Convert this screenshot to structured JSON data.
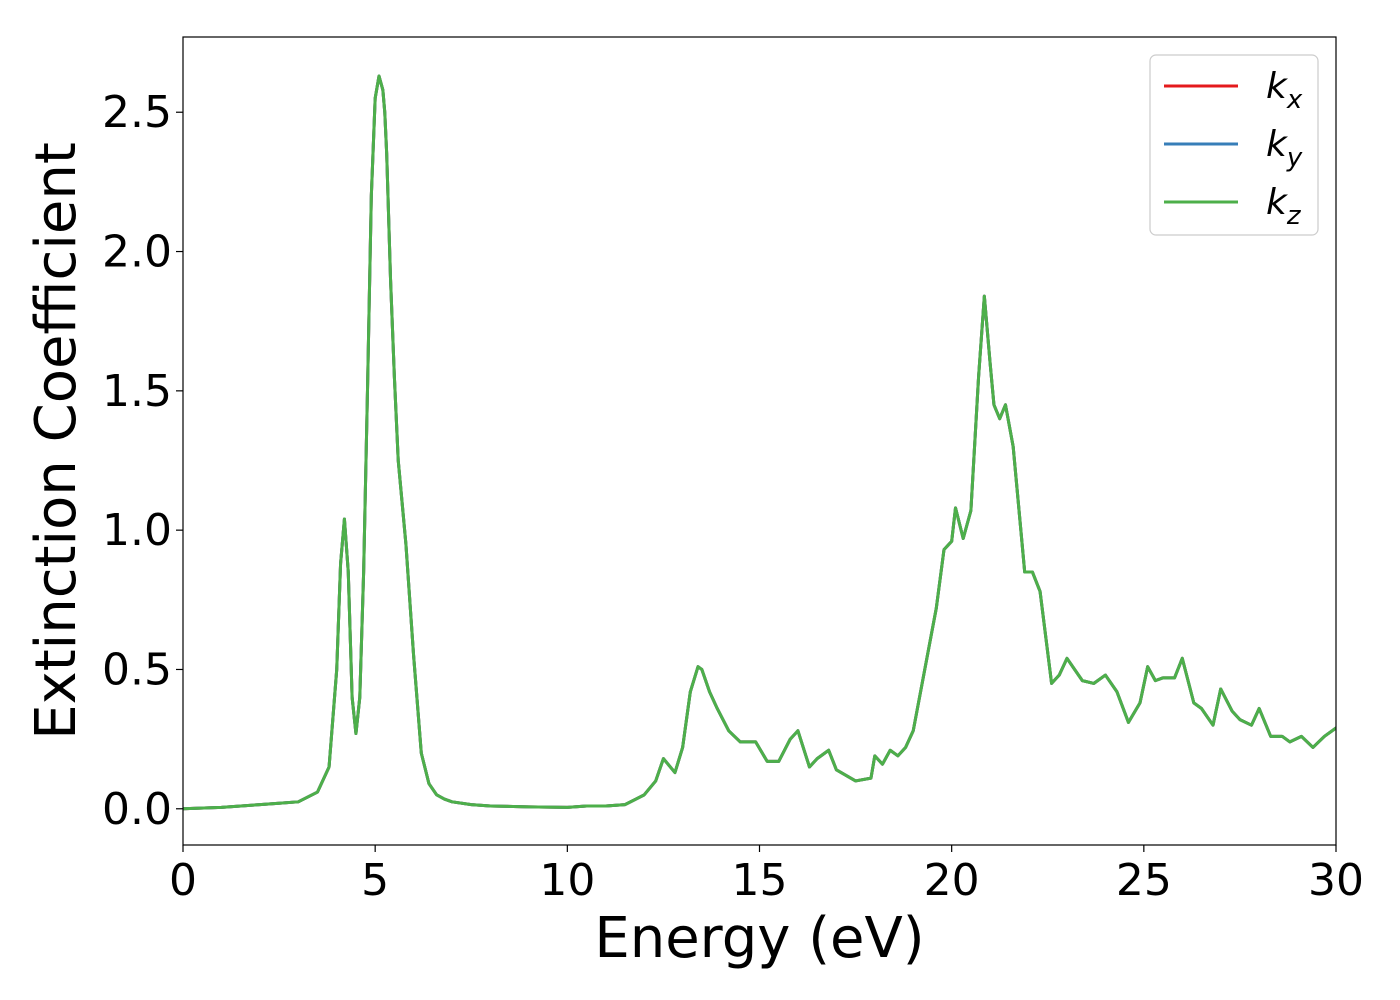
{
  "chart_data": {
    "type": "line",
    "title": "",
    "xlabel": "Energy (eV)",
    "ylabel": "Extinction Coefficient",
    "xlim": [
      0,
      30
    ],
    "ylim": [
      -0.13,
      2.77
    ],
    "xticks": [
      0,
      5,
      10,
      15,
      20,
      25,
      30
    ],
    "xtick_labels": [
      "0",
      "5",
      "10",
      "15",
      "20",
      "25",
      "30"
    ],
    "yticks": [
      0.0,
      0.5,
      1.0,
      1.5,
      2.0,
      2.5
    ],
    "ytick_labels": [
      "0.0",
      "0.5",
      "1.0",
      "1.5",
      "2.0",
      "2.5"
    ],
    "grid": false,
    "legend_position": "top-right",
    "series": [
      {
        "name": "k_x",
        "label_base": "k",
        "label_sub": "x",
        "color": "#e41a1c",
        "x": [
          0,
          1,
          2,
          2.5,
          3,
          3.5,
          3.8,
          4.0,
          4.1,
          4.2,
          4.3,
          4.4,
          4.5,
          4.6,
          4.7,
          4.8,
          4.9,
          5.0,
          5.1,
          5.2,
          5.25,
          5.3,
          5.4,
          5.5,
          5.6,
          5.8,
          6.0,
          6.2,
          6.4,
          6.6,
          6.8,
          7.0,
          7.5,
          8,
          9,
          10,
          10.5,
          11,
          11.5,
          12,
          12.3,
          12.5,
          12.8,
          13.0,
          13.2,
          13.4,
          13.5,
          13.7,
          13.9,
          14.2,
          14.5,
          14.9,
          15.2,
          15.5,
          15.8,
          16.0,
          16.3,
          16.5,
          16.8,
          17.0,
          17.5,
          17.9,
          18.0,
          18.2,
          18.4,
          18.6,
          18.8,
          19.0,
          19.3,
          19.6,
          19.8,
          20.0,
          20.1,
          20.3,
          20.5,
          20.7,
          20.85,
          21.0,
          21.1,
          21.25,
          21.4,
          21.6,
          21.9,
          22.1,
          22.3,
          22.6,
          22.8,
          23.0,
          23.2,
          23.4,
          23.7,
          24.0,
          24.3,
          24.6,
          24.9,
          25.1,
          25.3,
          25.5,
          25.8,
          26.0,
          26.3,
          26.5,
          26.8,
          27.0,
          27.3,
          27.5,
          27.8,
          28.0,
          28.3,
          28.6,
          28.8,
          29.1,
          29.4,
          29.7,
          30.0
        ],
        "y": [
          0.0,
          0.005,
          0.015,
          0.02,
          0.025,
          0.06,
          0.15,
          0.5,
          0.88,
          1.04,
          0.85,
          0.4,
          0.27,
          0.4,
          0.85,
          1.5,
          2.2,
          2.55,
          2.63,
          2.58,
          2.5,
          2.35,
          1.9,
          1.55,
          1.25,
          0.95,
          0.55,
          0.2,
          0.09,
          0.05,
          0.035,
          0.025,
          0.015,
          0.01,
          0.007,
          0.005,
          0.01,
          0.01,
          0.015,
          0.05,
          0.1,
          0.18,
          0.13,
          0.22,
          0.42,
          0.51,
          0.5,
          0.42,
          0.36,
          0.28,
          0.24,
          0.24,
          0.17,
          0.17,
          0.25,
          0.28,
          0.15,
          0.18,
          0.21,
          0.14,
          0.1,
          0.11,
          0.19,
          0.16,
          0.21,
          0.19,
          0.22,
          0.28,
          0.5,
          0.72,
          0.93,
          0.96,
          1.08,
          0.97,
          1.07,
          1.55,
          1.84,
          1.6,
          1.45,
          1.4,
          1.45,
          1.3,
          0.85,
          0.85,
          0.78,
          0.45,
          0.48,
          0.54,
          0.5,
          0.46,
          0.45,
          0.48,
          0.42,
          0.31,
          0.38,
          0.51,
          0.46,
          0.47,
          0.47,
          0.54,
          0.38,
          0.36,
          0.3,
          0.43,
          0.35,
          0.32,
          0.3,
          0.36,
          0.26,
          0.26,
          0.24,
          0.26,
          0.22,
          0.26,
          0.29
        ]
      },
      {
        "name": "k_y",
        "label_base": "k",
        "label_sub": "y",
        "color": "#377eb8",
        "x": [
          0,
          1,
          2,
          2.5,
          3,
          3.5,
          3.8,
          4.0,
          4.1,
          4.2,
          4.3,
          4.4,
          4.5,
          4.6,
          4.7,
          4.8,
          4.9,
          5.0,
          5.1,
          5.2,
          5.25,
          5.3,
          5.4,
          5.5,
          5.6,
          5.8,
          6.0,
          6.2,
          6.4,
          6.6,
          6.8,
          7.0,
          7.5,
          8,
          9,
          10,
          10.5,
          11,
          11.5,
          12,
          12.3,
          12.5,
          12.8,
          13.0,
          13.2,
          13.4,
          13.5,
          13.7,
          13.9,
          14.2,
          14.5,
          14.9,
          15.2,
          15.5,
          15.8,
          16.0,
          16.3,
          16.5,
          16.8,
          17.0,
          17.5,
          17.9,
          18.0,
          18.2,
          18.4,
          18.6,
          18.8,
          19.0,
          19.3,
          19.6,
          19.8,
          20.0,
          20.1,
          20.3,
          20.5,
          20.7,
          20.85,
          21.0,
          21.1,
          21.25,
          21.4,
          21.6,
          21.9,
          22.1,
          22.3,
          22.6,
          22.8,
          23.0,
          23.2,
          23.4,
          23.7,
          24.0,
          24.3,
          24.6,
          24.9,
          25.1,
          25.3,
          25.5,
          25.8,
          26.0,
          26.3,
          26.5,
          26.8,
          27.0,
          27.3,
          27.5,
          27.8,
          28.0,
          28.3,
          28.6,
          28.8,
          29.1,
          29.4,
          29.7,
          30.0
        ],
        "y": [
          0.0,
          0.005,
          0.015,
          0.02,
          0.025,
          0.06,
          0.15,
          0.5,
          0.88,
          1.04,
          0.85,
          0.4,
          0.27,
          0.4,
          0.85,
          1.5,
          2.2,
          2.55,
          2.63,
          2.58,
          2.5,
          2.35,
          1.9,
          1.55,
          1.25,
          0.95,
          0.55,
          0.2,
          0.09,
          0.05,
          0.035,
          0.025,
          0.015,
          0.01,
          0.007,
          0.005,
          0.01,
          0.01,
          0.015,
          0.05,
          0.1,
          0.18,
          0.13,
          0.22,
          0.42,
          0.51,
          0.5,
          0.42,
          0.36,
          0.28,
          0.24,
          0.24,
          0.17,
          0.17,
          0.25,
          0.28,
          0.15,
          0.18,
          0.21,
          0.14,
          0.1,
          0.11,
          0.19,
          0.16,
          0.21,
          0.19,
          0.22,
          0.28,
          0.5,
          0.72,
          0.93,
          0.96,
          1.08,
          0.97,
          1.07,
          1.55,
          1.84,
          1.6,
          1.45,
          1.4,
          1.45,
          1.3,
          0.85,
          0.85,
          0.78,
          0.45,
          0.48,
          0.54,
          0.5,
          0.46,
          0.45,
          0.48,
          0.42,
          0.31,
          0.38,
          0.51,
          0.46,
          0.47,
          0.47,
          0.54,
          0.38,
          0.36,
          0.3,
          0.43,
          0.35,
          0.32,
          0.3,
          0.36,
          0.26,
          0.26,
          0.24,
          0.26,
          0.22,
          0.26,
          0.29
        ]
      },
      {
        "name": "k_z",
        "label_base": "k",
        "label_sub": "z",
        "color": "#4daf4a",
        "x": [
          0,
          1,
          2,
          2.5,
          3,
          3.5,
          3.8,
          4.0,
          4.1,
          4.2,
          4.3,
          4.4,
          4.5,
          4.6,
          4.7,
          4.8,
          4.9,
          5.0,
          5.1,
          5.2,
          5.25,
          5.3,
          5.4,
          5.5,
          5.6,
          5.8,
          6.0,
          6.2,
          6.4,
          6.6,
          6.8,
          7.0,
          7.5,
          8,
          9,
          10,
          10.5,
          11,
          11.5,
          12,
          12.3,
          12.5,
          12.8,
          13.0,
          13.2,
          13.4,
          13.5,
          13.7,
          13.9,
          14.2,
          14.5,
          14.9,
          15.2,
          15.5,
          15.8,
          16.0,
          16.3,
          16.5,
          16.8,
          17.0,
          17.5,
          17.9,
          18.0,
          18.2,
          18.4,
          18.6,
          18.8,
          19.0,
          19.3,
          19.6,
          19.8,
          20.0,
          20.1,
          20.3,
          20.5,
          20.7,
          20.85,
          21.0,
          21.1,
          21.25,
          21.4,
          21.6,
          21.9,
          22.1,
          22.3,
          22.6,
          22.8,
          23.0,
          23.2,
          23.4,
          23.7,
          24.0,
          24.3,
          24.6,
          24.9,
          25.1,
          25.3,
          25.5,
          25.8,
          26.0,
          26.3,
          26.5,
          26.8,
          27.0,
          27.3,
          27.5,
          27.8,
          28.0,
          28.3,
          28.6,
          28.8,
          29.1,
          29.4,
          29.7,
          30.0
        ],
        "y": [
          0.0,
          0.005,
          0.015,
          0.02,
          0.025,
          0.06,
          0.15,
          0.5,
          0.88,
          1.04,
          0.85,
          0.4,
          0.27,
          0.4,
          0.85,
          1.5,
          2.2,
          2.55,
          2.63,
          2.58,
          2.5,
          2.35,
          1.9,
          1.55,
          1.25,
          0.95,
          0.55,
          0.2,
          0.09,
          0.05,
          0.035,
          0.025,
          0.015,
          0.01,
          0.007,
          0.005,
          0.01,
          0.01,
          0.015,
          0.05,
          0.1,
          0.18,
          0.13,
          0.22,
          0.42,
          0.51,
          0.5,
          0.42,
          0.36,
          0.28,
          0.24,
          0.24,
          0.17,
          0.17,
          0.25,
          0.28,
          0.15,
          0.18,
          0.21,
          0.14,
          0.1,
          0.11,
          0.19,
          0.16,
          0.21,
          0.19,
          0.22,
          0.28,
          0.5,
          0.72,
          0.93,
          0.96,
          1.08,
          0.97,
          1.07,
          1.55,
          1.84,
          1.6,
          1.45,
          1.4,
          1.45,
          1.3,
          0.85,
          0.85,
          0.78,
          0.45,
          0.48,
          0.54,
          0.5,
          0.46,
          0.45,
          0.48,
          0.42,
          0.31,
          0.38,
          0.51,
          0.46,
          0.47,
          0.47,
          0.54,
          0.38,
          0.36,
          0.3,
          0.43,
          0.35,
          0.32,
          0.3,
          0.36,
          0.26,
          0.26,
          0.24,
          0.26,
          0.22,
          0.26,
          0.29
        ]
      }
    ]
  }
}
